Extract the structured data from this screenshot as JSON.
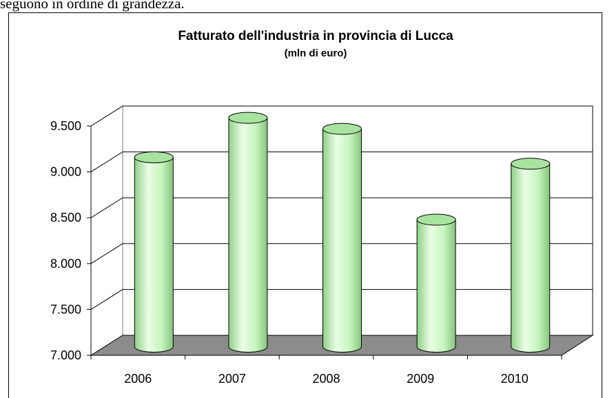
{
  "text_above": "seguono in ordine di grandezza.",
  "chart_data": {
    "type": "bar",
    "title": "Fatturato dell'industria in provincia di Lucca",
    "subtitle": "(mln di euro)",
    "categories": [
      "2006",
      "2007",
      "2008",
      "2009",
      "2010"
    ],
    "values": [
      9050,
      9480,
      9360,
      8370,
      8980
    ],
    "color": "#c6f5be",
    "ylim": [
      7000,
      9500
    ],
    "yticks": [
      {
        "value": 7000,
        "label": "7.000"
      },
      {
        "value": 7500,
        "label": "7.500"
      },
      {
        "value": 8000,
        "label": "8.000"
      },
      {
        "value": 8500,
        "label": "8.500"
      },
      {
        "value": 9000,
        "label": "9.000"
      },
      {
        "value": 9500,
        "label": "9.500"
      }
    ],
    "grid": true
  }
}
